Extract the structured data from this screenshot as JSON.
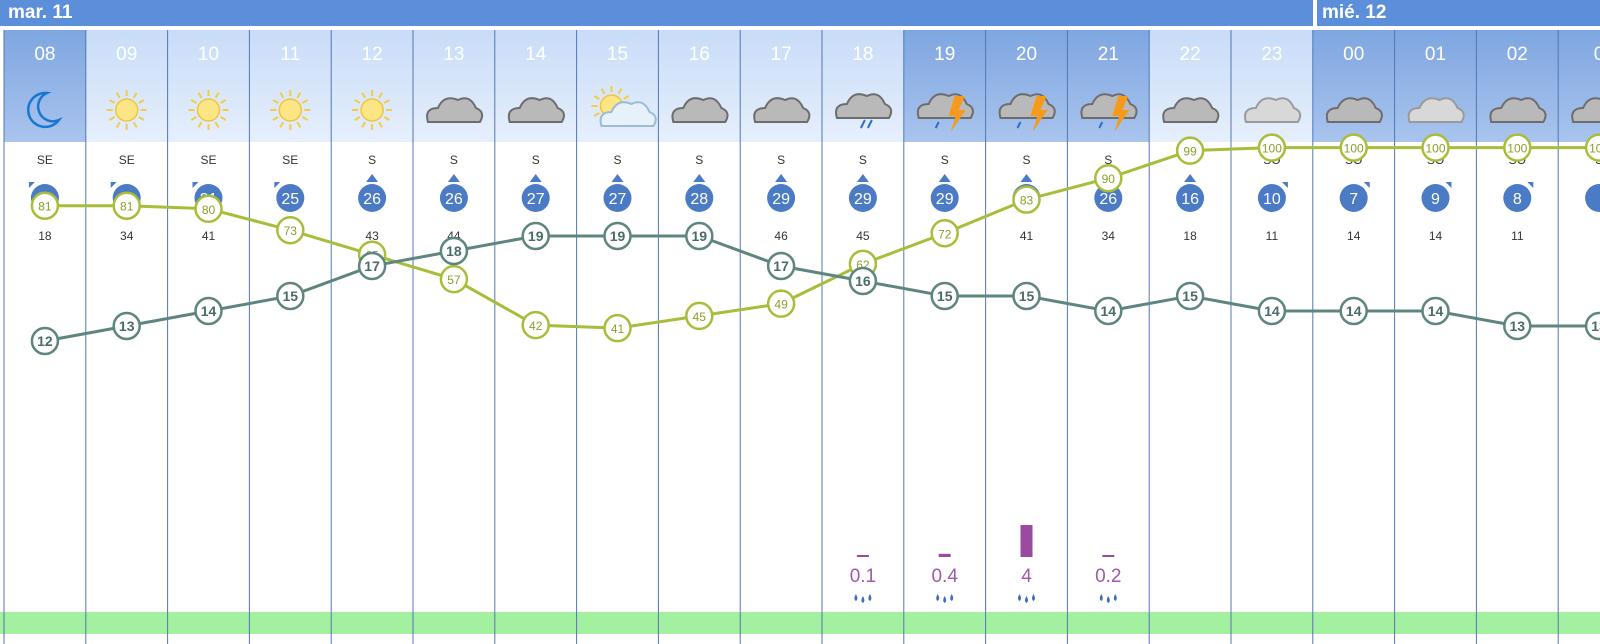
{
  "days": [
    {
      "label": "mar. 11"
    },
    {
      "label": "mié. 12"
    }
  ],
  "colors": {
    "header_day": "#5b8fd9",
    "header_light": "#c8dcf8",
    "header_night": "#7ea6e0",
    "wind_badge": "#4a7bc4",
    "humidity_line": "#a8bd3a",
    "temperature_line": "#5f8580",
    "precip_bar": "#9a4aa0",
    "footer": "#a3f0a0"
  },
  "chart_data": {
    "type": "line",
    "x": [
      "08",
      "09",
      "10",
      "11",
      "12",
      "13",
      "14",
      "15",
      "16",
      "17",
      "18",
      "19",
      "20",
      "21",
      "22",
      "23",
      "00",
      "01",
      "02",
      "0"
    ],
    "icons": [
      "moon-icon",
      "sun-icon",
      "sun-icon",
      "sun-icon",
      "sun-icon",
      "cloud-icon",
      "cloud-icon",
      "sun-cloud-icon",
      "cloud-icon",
      "cloud-icon",
      "rain-cloud-icon",
      "storm-icon",
      "storm-icon",
      "storm-icon",
      "cloud-icon",
      "light-cloud-icon",
      "cloud-icon",
      "light-cloud-icon",
      "cloud-icon",
      "cloud-icon"
    ],
    "wind_direction": [
      "SE",
      "SE",
      "SE",
      "SE",
      "S",
      "S",
      "S",
      "S",
      "S",
      "S",
      "S",
      "S",
      "S",
      "S",
      "S",
      "SO",
      "SO",
      "SO",
      "SO",
      "S"
    ],
    "wind_speed": [
      7,
      12,
      21,
      25,
      26,
      26,
      27,
      27,
      28,
      29,
      29,
      29,
      25,
      26,
      16,
      10,
      7,
      9,
      8,
      null
    ],
    "wind_gust": [
      18,
      34,
      41,
      43,
      43,
      44,
      43,
      44,
      46,
      46,
      45,
      42,
      41,
      34,
      18,
      11,
      14,
      14,
      11,
      null
    ],
    "series": [
      {
        "values": [
          81,
          81,
          80,
          73,
          65,
          57,
          42,
          41,
          45,
          49,
          62,
          72,
          83,
          90,
          99,
          100,
          100,
          100,
          100,
          100
        ]
      },
      {
        "values": [
          12,
          13,
          14,
          15,
          17,
          18,
          19,
          19,
          19,
          17,
          16,
          15,
          15,
          14,
          15,
          14,
          14,
          14,
          13,
          13
        ]
      }
    ],
    "precipitation": [
      {
        "hour": "18",
        "value": "0.1"
      },
      {
        "hour": "19",
        "value": "0.4"
      },
      {
        "hour": "20",
        "value": "4"
      },
      {
        "hour": "21",
        "value": "0.2"
      }
    ]
  }
}
